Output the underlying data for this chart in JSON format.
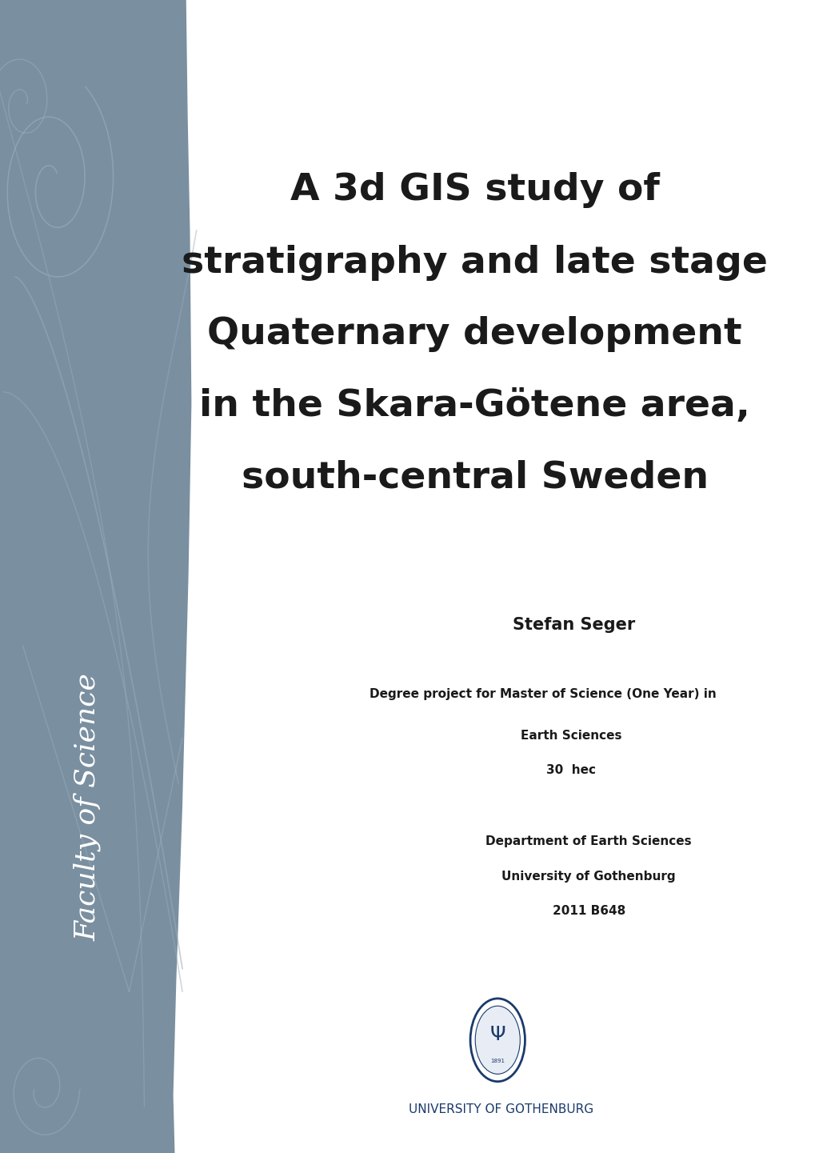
{
  "title_line1": "A 3d GIS study of",
  "title_line2": "stratigraphy and late stage",
  "title_line3": "Quaternary development",
  "title_line4": "in the Skara-Götene area,",
  "title_line5": "south-central Sweden",
  "author": "Stefan Seger",
  "degree_line1": "Degree project for Master of Science (One Year) in",
  "degree_line2": "Earth Sciences",
  "degree_line3": "30  hec",
  "dept_line1": "Department of Earth Sciences",
  "dept_line2": "University of Gothenburg",
  "dept_line3": "2011 B648",
  "faculty_text": "Faculty of Science",
  "university_text": "UNIVERSITY OF GOTHENBURG",
  "bg_color": "#ffffff",
  "sidebar_color": "#7a8fa0",
  "title_color": "#1a1a1a",
  "text_color": "#1a1a1a",
  "faculty_text_color": "#ffffff",
  "university_text_color": "#1a3a6b",
  "swirl_color": "#9aabb8"
}
